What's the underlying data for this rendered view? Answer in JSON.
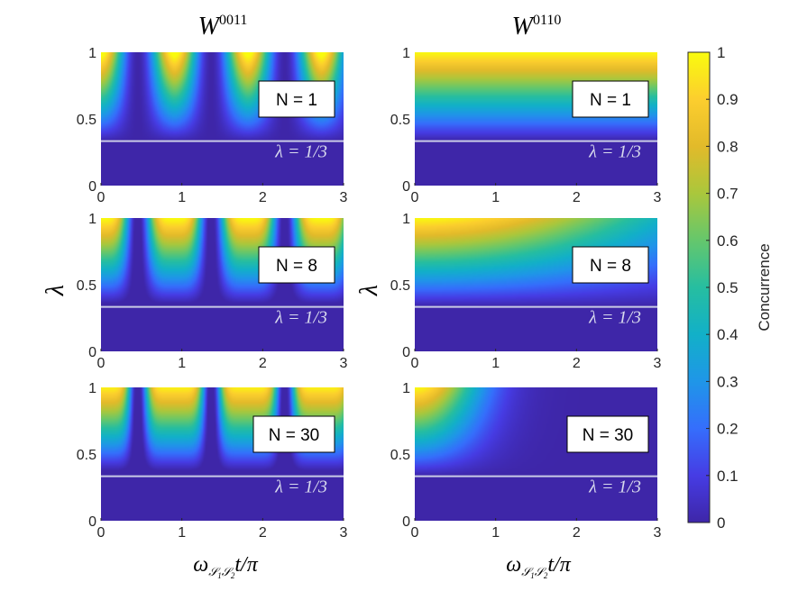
{
  "chart_data": {
    "type": "heatmap",
    "columns": [
      {
        "title_base": "W",
        "title_sup": "0011"
      },
      {
        "title_base": "W",
        "title_sup": "0110"
      }
    ],
    "panels": [
      {
        "id": "a",
        "state": "W0011",
        "N_label": "N = 1",
        "N": 1
      },
      {
        "id": "b",
        "state": "W0110",
        "N_label": "N = 1",
        "N": 1
      },
      {
        "id": "c",
        "state": "W0011",
        "N_label": "N = 8",
        "N": 8
      },
      {
        "id": "d",
        "state": "W0110",
        "N_label": "N = 8",
        "N": 8
      },
      {
        "id": "e",
        "state": "W0011",
        "N_label": "N = 30",
        "N": 30
      },
      {
        "id": "f",
        "state": "W0110",
        "N_label": "N = 30",
        "N": 30
      }
    ],
    "x_range": [
      0,
      3
    ],
    "x_ticks": [
      "0",
      "1",
      "2",
      "3"
    ],
    "y_range": [
      0,
      1
    ],
    "y_ticks": [
      "0",
      "0.5",
      "1"
    ],
    "threshold_line": {
      "lambda": 0.3333,
      "label": "λ = 1/3"
    },
    "ylabel": "λ",
    "xlabel": "ω S1S2 t/π",
    "colorbar": {
      "label": "Concurrence",
      "range": [
        0,
        1
      ],
      "ticks": [
        "0",
        "0.1",
        "0.2",
        "0.3",
        "0.4",
        "0.5",
        "0.6",
        "0.7",
        "0.8",
        "0.9",
        "1"
      ],
      "colormap": "parula"
    }
  },
  "colors": {
    "line": "#c9cbe6",
    "background_low": "#3e26a8"
  }
}
